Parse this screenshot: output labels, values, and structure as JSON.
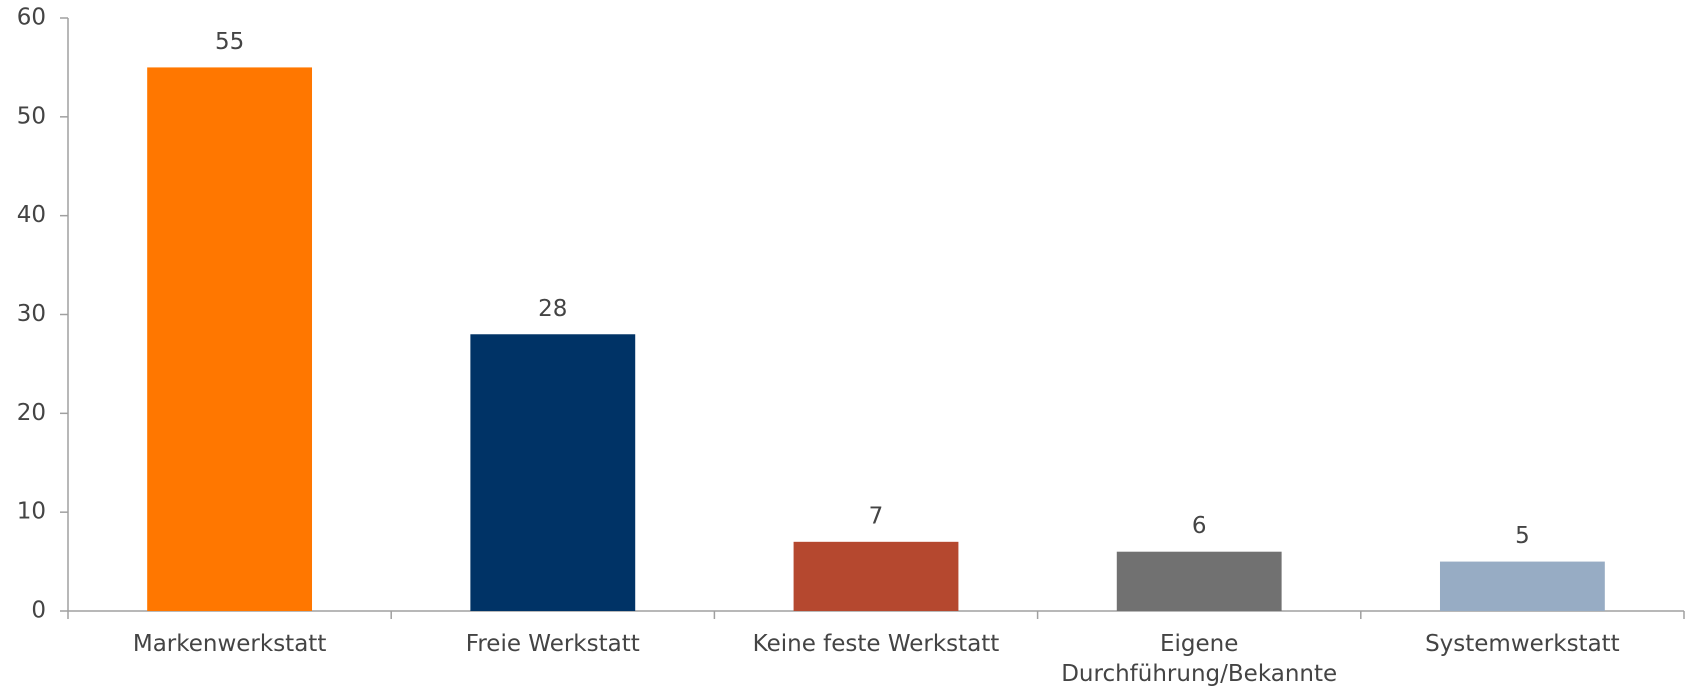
{
  "chart_data": {
    "type": "bar",
    "categories": [
      "Markenwerkstatt",
      "Freie Werkstatt",
      "Keine feste Werkstatt",
      "Eigene Durchführung/Bekannte",
      "Systemwerkstatt"
    ],
    "values": [
      55,
      28,
      7,
      6,
      5
    ],
    "colors": [
      "#ff7700",
      "#003366",
      "#b5482f",
      "#717171",
      "#97acc4"
    ],
    "ylim": [
      0,
      60
    ],
    "yticks": [
      0,
      10,
      20,
      30,
      40,
      50,
      60
    ],
    "grid": false
  }
}
